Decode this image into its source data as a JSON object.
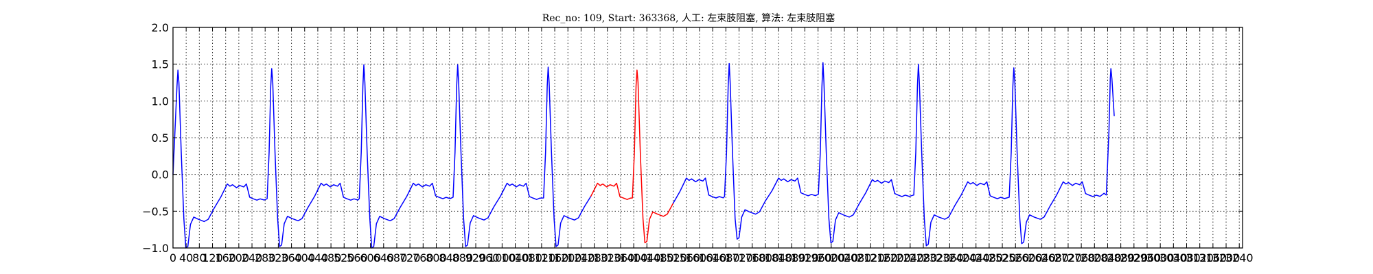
{
  "chart_data": {
    "type": "line",
    "title": "Rec_no: 109, Start: 363368, 人工: 左束肢阻塞, 算法: 左束肢阻塞",
    "xlabel": "",
    "ylabel": "",
    "xlim": [
      0,
      3250
    ],
    "ylim": [
      -1.0,
      2.0
    ],
    "grid": true,
    "yticks": [
      -1.0,
      -0.5,
      0.0,
      0.5,
      1.0,
      1.5,
      2.0
    ],
    "ytick_labels": [
      "−1.0",
      "−0.5",
      "0.0",
      "0.5",
      "1.0",
      "1.5",
      "2.0"
    ],
    "xticks": [
      0,
      40,
      80,
      120,
      160,
      200,
      240,
      280,
      320,
      360,
      400,
      440,
      480,
      520,
      560,
      600,
      640,
      680,
      720,
      760,
      800,
      840,
      880,
      920,
      960,
      1000,
      1040,
      1080,
      1120,
      1160,
      1200,
      1240,
      1280,
      1320,
      1360,
      1400,
      1440,
      1480,
      1520,
      1560,
      1600,
      1640,
      1680,
      1720,
      1760,
      1800,
      1840,
      1880,
      1920,
      1960,
      2000,
      2040,
      2080,
      2120,
      2160,
      2200,
      2240,
      2280,
      2320,
      2360,
      2400,
      2440,
      2480,
      2520,
      2560,
      2600,
      2640,
      2680,
      2720,
      2760,
      2800,
      2840,
      2880,
      2920,
      2960,
      3000,
      3040,
      3080,
      3120,
      3160,
      3200,
      3240
    ],
    "xtick_labels": [
      "0",
      "40",
      "80",
      "120",
      "160",
      "200",
      "240",
      "280",
      "320",
      "360",
      "400",
      "440",
      "480",
      "520",
      "560",
      "600",
      "640",
      "680",
      "720",
      "760",
      "800",
      "840",
      "880",
      "920",
      "960",
      "1000",
      "1040",
      "1080",
      "1120",
      "1160",
      "1200",
      "1240",
      "1280",
      "1320",
      "1360",
      "1400",
      "1440",
      "1480",
      "1520",
      "1560",
      "1600",
      "1640",
      "1680",
      "1720",
      "1760",
      "1800",
      "1840",
      "1880",
      "1920",
      "1960",
      "2000",
      "2040",
      "2080",
      "2120",
      "2160",
      "2200",
      "2240",
      "2280",
      "2320",
      "2360",
      "2400",
      "2440",
      "2480",
      "2520",
      "2560",
      "2600",
      "2640",
      "2680",
      "2720",
      "2760",
      "2800",
      "2840",
      "2880",
      "2920",
      "2960",
      "3000",
      "3040",
      "3080",
      "3120",
      "3160",
      "3200",
      "3240"
    ],
    "series_colors": {
      "normal": "#0000ff",
      "highlighted": "#ff0000"
    },
    "highlight_range": [
      1290,
      1535
    ],
    "x_end": 2860,
    "beats": [
      {
        "r_x": 15,
        "r_peak": 1.42,
        "s_min": -1.0,
        "st": -0.58,
        "t_peak": -0.13,
        "base": -0.33
      },
      {
        "r_x": 300,
        "r_peak": 1.44,
        "s_min": -0.98,
        "st": -0.57,
        "t_peak": -0.12,
        "base": -0.33
      },
      {
        "r_x": 580,
        "r_peak": 1.49,
        "s_min": -1.0,
        "st": -0.57,
        "t_peak": -0.12,
        "base": -0.31
      },
      {
        "r_x": 865,
        "r_peak": 1.49,
        "s_min": -0.98,
        "st": -0.56,
        "t_peak": -0.12,
        "base": -0.32
      },
      {
        "r_x": 1140,
        "r_peak": 1.46,
        "s_min": -0.98,
        "st": -0.56,
        "t_peak": -0.12,
        "base": -0.32
      },
      {
        "r_x": 1410,
        "r_peak": 1.42,
        "s_min": -0.93,
        "st": -0.51,
        "t_peak": -0.05,
        "base": -0.3
      },
      {
        "r_x": 1690,
        "r_peak": 1.51,
        "s_min": -0.88,
        "st": -0.48,
        "t_peak": -0.05,
        "base": -0.27
      },
      {
        "r_x": 1975,
        "r_peak": 1.52,
        "s_min": -0.93,
        "st": -0.52,
        "t_peak": -0.07,
        "base": -0.28
      },
      {
        "r_x": 2265,
        "r_peak": 1.5,
        "s_min": -0.97,
        "st": -0.55,
        "t_peak": -0.1,
        "base": -0.31
      },
      {
        "r_x": 2555,
        "r_peak": 1.45,
        "s_min": -0.94,
        "st": -0.55,
        "t_peak": -0.1,
        "base": -0.28
      },
      {
        "r_x": 2850,
        "r_peak": 1.44,
        "s_min": 0.8,
        "st": 0.8,
        "t_peak": 0.8,
        "base": 0.8
      }
    ]
  }
}
